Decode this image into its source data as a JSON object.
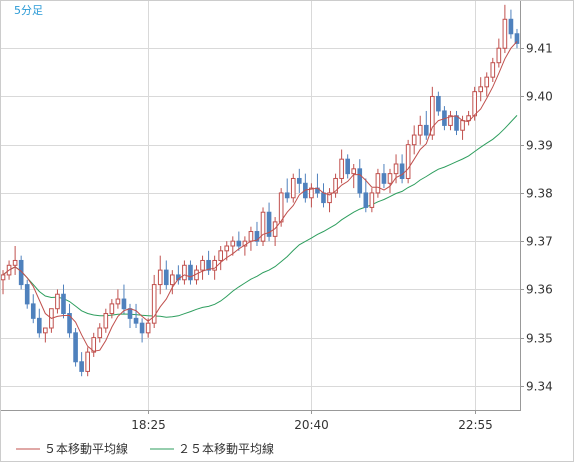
{
  "colors": {
    "up": "#c0504d",
    "down": "#4f81bd",
    "ma5": "#c0504d",
    "ma25": "#2e9e5e",
    "grid": "#d9d9d9",
    "axis": "#999999",
    "period": "#2a9ad6"
  },
  "chart_data": {
    "type": "candlestick",
    "title": "",
    "period_label": "5分足",
    "ylim": [
      9.335,
      9.42
    ],
    "yticks": [
      "9.41",
      "9.40",
      "9.39",
      "9.38",
      "9.37",
      "9.36",
      "9.35",
      "9.34"
    ],
    "xticks": [
      {
        "label": "18:25",
        "index": 24
      },
      {
        "label": "20:40",
        "index": 51
      },
      {
        "label": "22:55",
        "index": 78
      }
    ],
    "legend": [
      {
        "label": "５本移動平均線",
        "color": "ma5"
      },
      {
        "label": "２５本移動平均線",
        "color": "ma25"
      }
    ],
    "candles": [
      [
        9.362,
        9.364,
        9.359,
        9.363
      ],
      [
        9.363,
        9.366,
        9.362,
        9.365
      ],
      [
        9.365,
        9.369,
        9.363,
        9.366
      ],
      [
        9.366,
        9.367,
        9.36,
        9.361
      ],
      [
        9.361,
        9.362,
        9.356,
        9.357
      ],
      [
        9.357,
        9.359,
        9.353,
        9.354
      ],
      [
        9.354,
        9.356,
        9.35,
        9.351
      ],
      [
        9.351,
        9.352,
        9.349,
        9.352
      ],
      [
        9.352,
        9.356,
        9.351,
        9.356
      ],
      [
        9.356,
        9.36,
        9.355,
        9.359
      ],
      [
        9.359,
        9.361,
        9.354,
        9.355
      ],
      [
        9.355,
        9.357,
        9.35,
        9.351
      ],
      [
        9.351,
        9.352,
        9.344,
        9.345
      ],
      [
        9.345,
        9.347,
        9.342,
        9.343
      ],
      [
        9.343,
        9.348,
        9.342,
        9.347
      ],
      [
        9.347,
        9.351,
        9.346,
        9.35
      ],
      [
        9.35,
        9.353,
        9.349,
        9.352
      ],
      [
        9.352,
        9.356,
        9.351,
        9.355
      ],
      [
        9.355,
        9.358,
        9.354,
        9.357
      ],
      [
        9.357,
        9.36,
        9.356,
        9.358
      ],
      [
        9.358,
        9.361,
        9.355,
        9.356
      ],
      [
        9.356,
        9.357,
        9.352,
        9.354
      ],
      [
        9.354,
        9.357,
        9.352,
        9.353
      ],
      [
        9.353,
        9.354,
        9.349,
        9.351
      ],
      [
        9.351,
        9.354,
        9.35,
        9.353
      ],
      [
        9.353,
        9.363,
        9.352,
        9.361
      ],
      [
        9.361,
        9.367,
        9.359,
        9.364
      ],
      [
        9.364,
        9.366,
        9.36,
        9.361
      ],
      [
        9.361,
        9.364,
        9.359,
        9.363
      ],
      [
        9.363,
        9.365,
        9.361,
        9.362
      ],
      [
        9.362,
        9.366,
        9.361,
        9.365
      ],
      [
        9.365,
        9.366,
        9.361,
        9.362
      ],
      [
        9.362,
        9.365,
        9.361,
        9.364
      ],
      [
        9.364,
        9.367,
        9.362,
        9.366
      ],
      [
        9.366,
        9.368,
        9.363,
        9.364
      ],
      [
        9.364,
        9.367,
        9.362,
        9.366
      ],
      [
        9.366,
        9.369,
        9.364,
        9.368
      ],
      [
        9.368,
        9.37,
        9.366,
        9.369
      ],
      [
        9.369,
        9.371,
        9.367,
        9.37
      ],
      [
        9.37,
        9.372,
        9.368,
        9.369
      ],
      [
        9.369,
        9.371,
        9.367,
        9.37
      ],
      [
        9.37,
        9.373,
        9.368,
        9.372
      ],
      [
        9.372,
        9.374,
        9.369,
        9.37
      ],
      [
        9.37,
        9.377,
        9.369,
        9.376
      ],
      [
        9.376,
        9.378,
        9.37,
        9.371
      ],
      [
        9.371,
        9.375,
        9.369,
        9.374
      ],
      [
        9.374,
        9.381,
        9.373,
        9.38
      ],
      [
        9.38,
        9.383,
        9.378,
        9.379
      ],
      [
        9.379,
        9.384,
        9.378,
        9.383
      ],
      [
        9.383,
        9.385,
        9.38,
        9.382
      ],
      [
        9.382,
        9.384,
        9.378,
        9.379
      ],
      [
        9.379,
        9.382,
        9.377,
        9.381
      ],
      [
        9.381,
        9.384,
        9.379,
        9.38
      ],
      [
        9.38,
        9.382,
        9.377,
        9.378
      ],
      [
        9.378,
        9.381,
        9.376,
        9.38
      ],
      [
        9.38,
        9.384,
        9.379,
        9.383
      ],
      [
        9.383,
        9.389,
        9.382,
        9.387
      ],
      [
        9.387,
        9.388,
        9.383,
        9.384
      ],
      [
        9.384,
        9.386,
        9.381,
        9.385
      ],
      [
        9.385,
        9.387,
        9.379,
        9.38
      ],
      [
        9.38,
        9.383,
        9.376,
        9.377
      ],
      [
        9.377,
        9.381,
        9.376,
        9.38
      ],
      [
        9.38,
        9.385,
        9.379,
        9.384
      ],
      [
        9.384,
        9.386,
        9.381,
        9.382
      ],
      [
        9.382,
        9.385,
        9.38,
        9.384
      ],
      [
        9.384,
        9.388,
        9.382,
        9.386
      ],
      [
        9.386,
        9.388,
        9.382,
        9.383
      ],
      [
        9.383,
        9.391,
        9.382,
        9.39
      ],
      [
        9.39,
        9.394,
        9.388,
        9.392
      ],
      [
        9.392,
        9.396,
        9.39,
        9.394
      ],
      [
        9.394,
        9.397,
        9.391,
        9.392
      ],
      [
        9.392,
        9.402,
        9.391,
        9.4
      ],
      [
        9.4,
        9.401,
        9.396,
        9.397
      ],
      [
        9.397,
        9.398,
        9.393,
        9.394
      ],
      [
        9.394,
        9.397,
        9.393,
        9.396
      ],
      [
        9.396,
        9.397,
        9.392,
        9.393
      ],
      [
        9.393,
        9.396,
        9.391,
        9.395
      ],
      [
        9.395,
        9.397,
        9.394,
        9.396
      ],
      [
        9.396,
        9.402,
        9.395,
        9.401
      ],
      [
        9.401,
        9.404,
        9.399,
        9.402
      ],
      [
        9.402,
        9.405,
        9.4,
        9.404
      ],
      [
        9.404,
        9.408,
        9.403,
        9.407
      ],
      [
        9.407,
        9.412,
        9.406,
        9.41
      ],
      [
        9.41,
        9.419,
        9.409,
        9.416
      ],
      [
        9.416,
        9.418,
        9.412,
        9.413
      ],
      [
        9.413,
        9.414,
        9.41,
        9.411
      ]
    ]
  }
}
